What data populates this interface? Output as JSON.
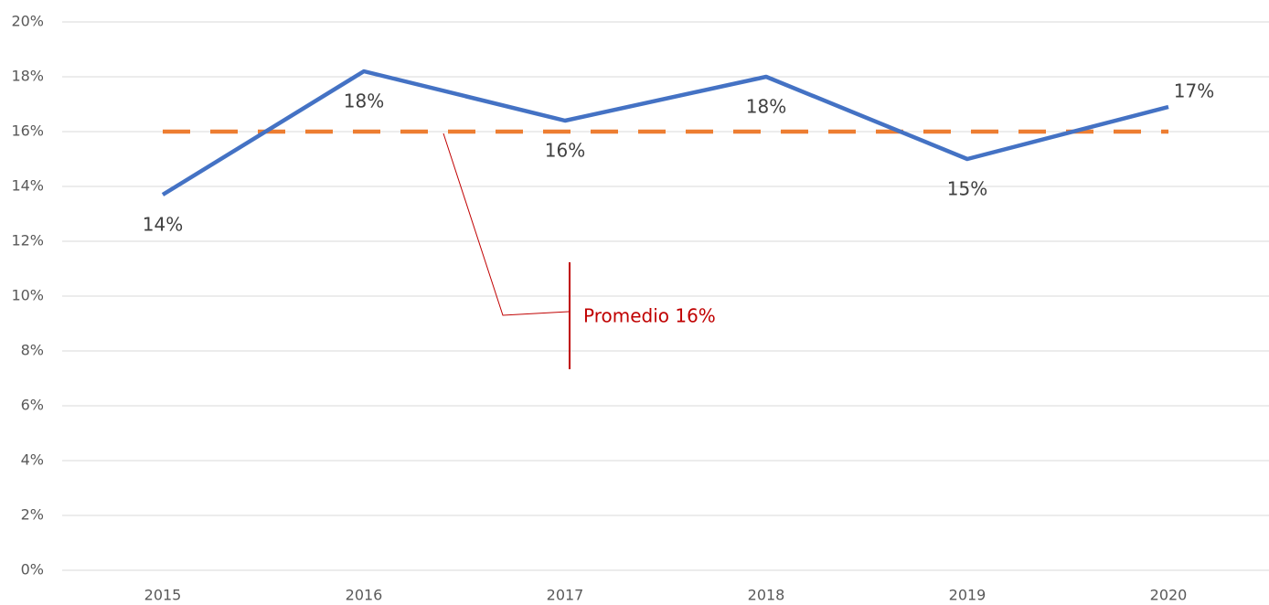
{
  "chart_data": {
    "type": "line",
    "categories": [
      "2015",
      "2016",
      "2017",
      "2018",
      "2019",
      "2020"
    ],
    "series": [
      {
        "color": "#4472c4",
        "values": [
          13.7,
          18.2,
          16.4,
          18.0,
          15.0,
          16.9
        ],
        "value_labels": [
          "14%",
          "18%",
          "16%",
          "18%",
          "15%",
          "17%"
        ]
      },
      {
        "color": "#ed7d31",
        "dashed": true,
        "values": [
          16,
          16,
          16,
          16,
          16,
          16
        ]
      }
    ],
    "ylim": [
      0,
      20
    ],
    "yticks": [
      {
        "value": 0,
        "label": "0%"
      },
      {
        "value": 2,
        "label": "2%"
      },
      {
        "value": 4,
        "label": "4%"
      },
      {
        "value": 6,
        "label": "6%"
      },
      {
        "value": 8,
        "label": "8%"
      },
      {
        "value": 10,
        "label": "10%"
      },
      {
        "value": 12,
        "label": "12%"
      },
      {
        "value": 14,
        "label": "14%"
      },
      {
        "value": 16,
        "label": "16%"
      },
      {
        "value": 18,
        "label": "18%"
      },
      {
        "value": 20,
        "label": "20%"
      }
    ],
    "grid": true,
    "annotation": "Promedio 16%",
    "annotation_color": "#c00000"
  }
}
